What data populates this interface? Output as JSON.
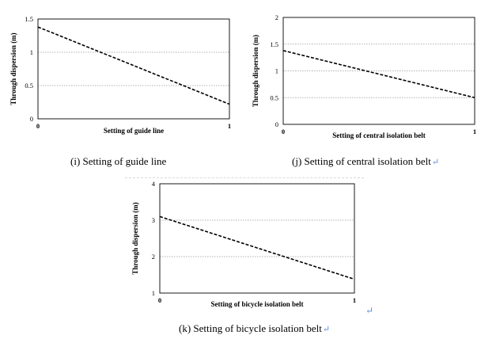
{
  "chart_data": [
    {
      "id": "i",
      "type": "line",
      "title": "",
      "xlabel": "Setting of guide line",
      "ylabel": "Through dispersion (m)",
      "xlim": [
        0,
        1
      ],
      "ylim": [
        0,
        1.5
      ],
      "xticks": [
        "0",
        "1"
      ],
      "yticks": [
        "0",
        "0.5",
        "1",
        "1.5"
      ],
      "ytick_values": [
        0,
        0.5,
        1,
        1.5
      ],
      "grid_values": [
        0.5,
        1
      ],
      "series": [
        {
          "name": "Through dispersion",
          "x": [
            0,
            1
          ],
          "y": [
            1.38,
            0.22
          ],
          "style": "dashed"
        }
      ],
      "caption": "(i) Setting of guide line",
      "return_mark": false
    },
    {
      "id": "j",
      "type": "line",
      "title": "",
      "xlabel": "Setting of central isolation belt",
      "ylabel": "Through dispersion (m)",
      "xlim": [
        0,
        1
      ],
      "ylim": [
        0,
        2
      ],
      "xticks": [
        "0",
        "1"
      ],
      "yticks": [
        "0",
        "0.5",
        "1",
        "1.5",
        "2"
      ],
      "ytick_values": [
        0,
        0.5,
        1,
        1.5,
        2
      ],
      "grid_values": [
        0.5,
        1,
        1.5
      ],
      "series": [
        {
          "name": "Through dispersion",
          "x": [
            0,
            1
          ],
          "y": [
            1.38,
            0.5
          ],
          "style": "dashed"
        }
      ],
      "caption": "(j) Setting of central isolation belt",
      "return_mark": true
    },
    {
      "id": "k",
      "type": "line",
      "title": "",
      "xlabel": "Setting of bicycle isolation belt",
      "ylabel": "Through dispersion (m)",
      "xlim": [
        0,
        1
      ],
      "ylim": [
        1,
        4
      ],
      "xticks": [
        "0",
        "1"
      ],
      "yticks": [
        "1",
        "2",
        "3",
        "4"
      ],
      "ytick_values": [
        1,
        2,
        3,
        4
      ],
      "grid_values": [
        2,
        3
      ],
      "series": [
        {
          "name": "Through dispersion",
          "x": [
            0,
            1
          ],
          "y": [
            3.1,
            1.38
          ],
          "style": "dashed"
        }
      ],
      "caption": "(k) Setting of bicycle isolation belt",
      "return_mark": true
    }
  ],
  "symbols": {
    "return": "↵"
  },
  "colors": {
    "axis": "#000000",
    "grid": "#999999",
    "line": "#000000",
    "return_mark": "#5b8bd6"
  }
}
